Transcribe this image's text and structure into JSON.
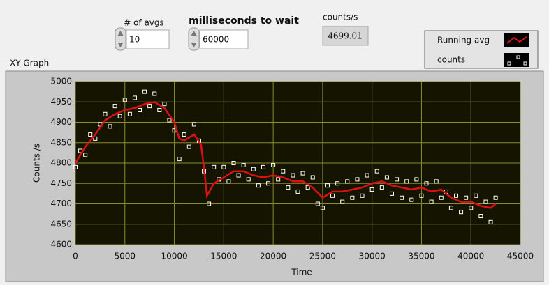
{
  "controls": {
    "avgs": {
      "label": "# of avgs",
      "value": 10
    },
    "wait": {
      "label": "milliseconds to wait",
      "value": 60000
    },
    "rate": {
      "label": "counts/s",
      "value": 4699.01
    }
  },
  "chart_data": {
    "type": "xy",
    "title": "XY Graph",
    "x_label": "Time",
    "y_label": "Counts /s",
    "xlim": [
      0,
      45000
    ],
    "ylim": [
      4600,
      5000
    ],
    "xticks": [
      0,
      5000,
      10000,
      15000,
      20000,
      25000,
      30000,
      35000,
      40000,
      45000
    ],
    "yticks": [
      4600,
      4650,
      4700,
      4750,
      4800,
      4850,
      4900,
      4950,
      5000
    ],
    "grid": true,
    "legend": "top-right",
    "series": [
      {
        "name": "Running avg",
        "color": "#e01010",
        "style": "line",
        "x": [
          0,
          1000,
          2000,
          3000,
          4000,
          5000,
          6000,
          7000,
          8000,
          9000,
          10000,
          10500,
          11000,
          12000,
          12700,
          13000,
          13300,
          14000,
          15000,
          16000,
          17000,
          18000,
          19000,
          20000,
          21000,
          22000,
          23000,
          24000,
          25000,
          26000,
          27000,
          28000,
          29000,
          30000,
          31000,
          32000,
          33000,
          34000,
          35000,
          36000,
          37000,
          38000,
          39000,
          40000,
          41000,
          42000,
          42500
        ],
        "values": [
          4800,
          4840,
          4870,
          4905,
          4920,
          4930,
          4935,
          4945,
          4950,
          4935,
          4900,
          4860,
          4855,
          4870,
          4845,
          4790,
          4720,
          4750,
          4765,
          4780,
          4780,
          4770,
          4765,
          4770,
          4765,
          4755,
          4755,
          4740,
          4715,
          4730,
          4730,
          4735,
          4740,
          4750,
          4755,
          4745,
          4740,
          4735,
          4740,
          4730,
          4735,
          4715,
          4705,
          4705,
          4695,
          4690,
          4700
        ]
      },
      {
        "name": "counts",
        "color": "#ffffff",
        "style": "points",
        "x": [
          0,
          500,
          1000,
          1500,
          2000,
          2500,
          3000,
          3500,
          4000,
          4500,
          5000,
          5500,
          6000,
          6500,
          7000,
          7500,
          8000,
          8500,
          9000,
          9500,
          10000,
          10500,
          11000,
          11500,
          12000,
          12500,
          13000,
          13500,
          14000,
          14500,
          15000,
          15500,
          16000,
          16500,
          17000,
          17500,
          18000,
          18500,
          19000,
          19500,
          20000,
          20500,
          21000,
          21500,
          22000,
          22500,
          23000,
          23500,
          24000,
          24500,
          25000,
          25500,
          26000,
          26500,
          27000,
          27500,
          28000,
          28500,
          29000,
          29500,
          30000,
          30500,
          31000,
          31500,
          32000,
          32500,
          33000,
          33500,
          34000,
          34500,
          35000,
          35500,
          36000,
          36500,
          37000,
          37500,
          38000,
          38500,
          39000,
          39500,
          40000,
          40500,
          41000,
          41500,
          42000,
          42500
        ],
        "values": [
          4790,
          4830,
          4820,
          4870,
          4860,
          4895,
          4920,
          4890,
          4940,
          4915,
          4955,
          4920,
          4960,
          4930,
          4975,
          4940,
          4970,
          4930,
          4945,
          4905,
          4880,
          4810,
          4870,
          4840,
          4895,
          4855,
          4780,
          4700,
          4790,
          4760,
          4790,
          4755,
          4800,
          4770,
          4795,
          4760,
          4785,
          4745,
          4790,
          4750,
          4795,
          4760,
          4780,
          4740,
          4770,
          4730,
          4775,
          4740,
          4765,
          4700,
          4690,
          4745,
          4720,
          4750,
          4705,
          4755,
          4715,
          4760,
          4720,
          4770,
          4735,
          4780,
          4740,
          4765,
          4725,
          4760,
          4715,
          4755,
          4710,
          4760,
          4720,
          4750,
          4705,
          4755,
          4715,
          4730,
          4690,
          4720,
          4680,
          4715,
          4690,
          4720,
          4670,
          4705,
          4655,
          4715
        ]
      }
    ]
  }
}
